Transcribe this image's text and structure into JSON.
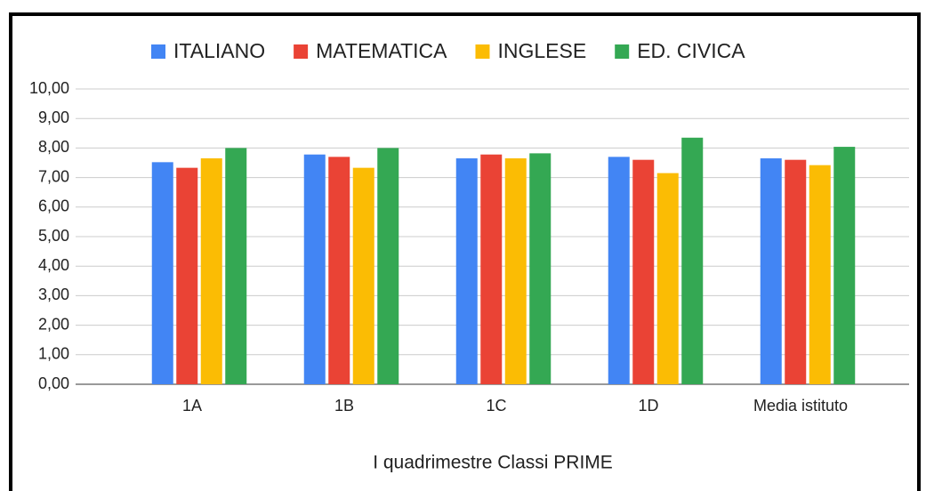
{
  "chart_data": {
    "type": "bar",
    "x_label": "I quadrimestre Classi PRIME",
    "categories": [
      "1A",
      "1B",
      "1C",
      "1D",
      "Media istituto"
    ],
    "series": [
      {
        "name": "ITALIANO",
        "color": "#4285f4",
        "values": [
          7.52,
          7.78,
          7.65,
          7.7,
          7.65
        ]
      },
      {
        "name": "MATEMATICA",
        "color": "#ea4335",
        "values": [
          7.33,
          7.7,
          7.78,
          7.6,
          7.6
        ]
      },
      {
        "name": "INGLESE",
        "color": "#fbbc04",
        "values": [
          7.65,
          7.33,
          7.65,
          7.15,
          7.42
        ]
      },
      {
        "name": "ED. CIVICA",
        "color": "#34a853",
        "values": [
          8.0,
          8.0,
          7.82,
          8.35,
          8.04
        ]
      }
    ],
    "ylim": [
      0,
      10
    ],
    "yticks": [
      {
        "value": 0,
        "label": "0,00"
      },
      {
        "value": 1,
        "label": "1,00"
      },
      {
        "value": 2,
        "label": "2,00"
      },
      {
        "value": 3,
        "label": "3,00"
      },
      {
        "value": 4,
        "label": "4,00"
      },
      {
        "value": 5,
        "label": "5,00"
      },
      {
        "value": 6,
        "label": "6,00"
      },
      {
        "value": 7,
        "label": "7,00"
      },
      {
        "value": 8,
        "label": "8,00"
      },
      {
        "value": 9,
        "label": "9,00"
      },
      {
        "value": 10,
        "label": "10,00"
      }
    ],
    "grid": true,
    "legend": "top"
  }
}
